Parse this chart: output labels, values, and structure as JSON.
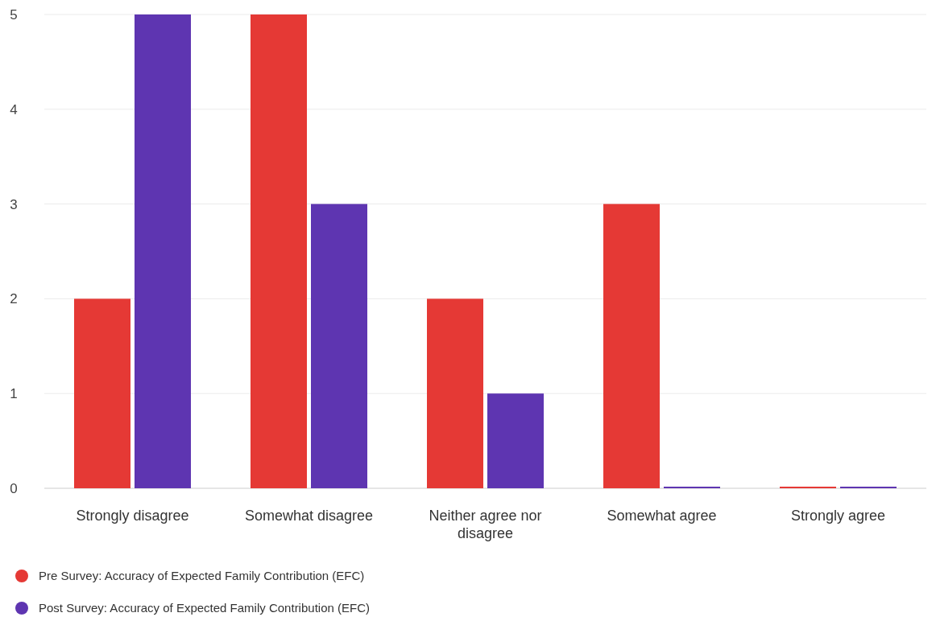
{
  "chart_data": {
    "type": "bar",
    "categories": [
      "Strongly disagree",
      "Somewhat disagree",
      "Neither agree nor disagree",
      "Somewhat agree",
      "Strongly agree"
    ],
    "series": [
      {
        "name": "Pre Survey: Accuracy of Expected Family Contribution (EFC)",
        "color": "#e53935",
        "values": [
          2,
          5,
          2,
          3,
          0
        ]
      },
      {
        "name": "Post Survey: Accuracy of Expected Family Contribution (EFC)",
        "color": "#5e35b1",
        "values": [
          5,
          3,
          1,
          0,
          0
        ]
      }
    ],
    "ylim": [
      0,
      5
    ],
    "yticks": [
      0,
      1,
      2,
      3,
      4,
      5
    ],
    "grid": "y",
    "legend": "bottom left"
  }
}
